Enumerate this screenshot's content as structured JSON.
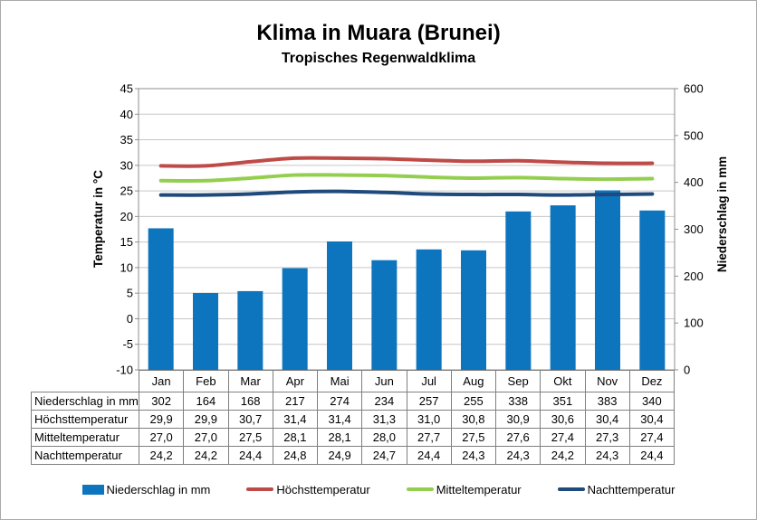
{
  "title": "Klima in Muara (Brunei)",
  "subtitle": "Tropisches Regenwaldklima",
  "chart_data": {
    "type": "combo",
    "title": "Klima in Muara (Brunei)",
    "subtitle": "Tropisches Regenwaldklima",
    "categories": [
      "Jan",
      "Feb",
      "Mar",
      "Apr",
      "Mai",
      "Jun",
      "Jul",
      "Aug",
      "Sep",
      "Okt",
      "Nov",
      "Dez"
    ],
    "series": [
      {
        "name": "Niederschlag in mm",
        "type": "bar",
        "axis": "right",
        "color": "#0d74be",
        "values": [
          302,
          164,
          168,
          217,
          274,
          234,
          257,
          255,
          338,
          351,
          383,
          340
        ]
      },
      {
        "name": "Höchsttemperatur",
        "type": "line",
        "axis": "left",
        "color": "#be4b48",
        "values": [
          29.9,
          29.9,
          30.7,
          31.4,
          31.4,
          31.3,
          31.0,
          30.8,
          30.9,
          30.6,
          30.4,
          30.4
        ]
      },
      {
        "name": "Mitteltemperatur",
        "type": "line",
        "axis": "left",
        "color": "#94ce4f",
        "values": [
          27.0,
          27.0,
          27.5,
          28.1,
          28.1,
          28.0,
          27.7,
          27.5,
          27.6,
          27.4,
          27.3,
          27.4
        ]
      },
      {
        "name": "Nachttemperatur",
        "type": "line",
        "axis": "left",
        "color": "#1f4a7c",
        "values": [
          24.2,
          24.2,
          24.4,
          24.8,
          24.9,
          24.7,
          24.4,
          24.3,
          24.3,
          24.2,
          24.3,
          24.4
        ]
      }
    ],
    "left_axis": {
      "label": "Temperatur in °C",
      "min": -10,
      "max": 45,
      "tick_step": 5,
      "ticks": [
        45,
        40,
        35,
        30,
        25,
        20,
        15,
        10,
        5,
        0,
        -5,
        -10
      ]
    },
    "right_axis": {
      "label": "Niederschlag in mm",
      "min": 0,
      "max": 600,
      "tick_step": 100,
      "ticks": [
        600,
        500,
        400,
        300,
        200,
        100,
        0
      ]
    },
    "grid": true,
    "legend_position": "bottom"
  },
  "table": {
    "rows": [
      {
        "label": "Niederschlag in mm",
        "values": [
          "302",
          "164",
          "168",
          "217",
          "274",
          "234",
          "257",
          "255",
          "338",
          "351",
          "383",
          "340"
        ]
      },
      {
        "label": "Höchsttemperatur",
        "values": [
          "29,9",
          "29,9",
          "30,7",
          "31,4",
          "31,4",
          "31,3",
          "31,0",
          "30,8",
          "30,9",
          "30,6",
          "30,4",
          "30,4"
        ]
      },
      {
        "label": "Mitteltemperatur",
        "values": [
          "27,0",
          "27,0",
          "27,5",
          "28,1",
          "28,1",
          "28,0",
          "27,7",
          "27,5",
          "27,6",
          "27,4",
          "27,3",
          "27,4"
        ]
      },
      {
        "label": "Nachttemperatur",
        "values": [
          "24,2",
          "24,2",
          "24,4",
          "24,8",
          "24,9",
          "24,7",
          "24,4",
          "24,3",
          "24,3",
          "24,2",
          "24,3",
          "24,4"
        ]
      }
    ]
  },
  "colors": {
    "bar": "#0d74be",
    "line_max": "#be4b48",
    "line_mean": "#94ce4f",
    "line_night": "#1f4a7c",
    "gridline": "#c6c6c6",
    "axis": "#8e8e8e",
    "table_border": "#7f7f7f"
  }
}
